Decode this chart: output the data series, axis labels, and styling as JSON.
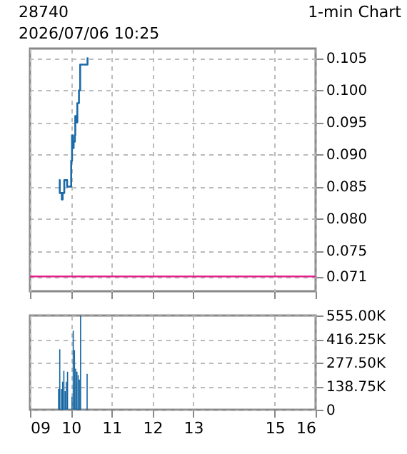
{
  "chart_data": [
    {
      "type": "step",
      "title": "28740",
      "subtitle": "2026/07/06 10:25",
      "annotations": [
        "1-min Chart"
      ],
      "x": [
        9.71,
        9.73,
        9.78,
        9.8,
        9.84,
        9.91,
        10.0,
        10.01,
        10.03,
        10.05,
        10.07,
        10.1,
        10.11,
        10.14,
        10.16,
        10.2,
        10.23,
        10.4,
        10.41,
        10.43
      ],
      "series": [
        {
          "color": "#1a6aa8",
          "values": [
            0.086,
            0.084,
            0.083,
            0.084,
            0.086,
            0.085,
            0.085,
            0.089,
            0.093,
            0.091,
            0.092,
            0.093,
            0.096,
            0.095,
            0.098,
            0.1,
            0.104,
            0.104,
            0.105,
            0.105
          ]
        }
      ],
      "xlim": [
        9,
        16
      ],
      "xticks": [
        9,
        10,
        11,
        12,
        13,
        15,
        16
      ],
      "ylim": [
        0.0687,
        0.1065
      ],
      "yticks": [
        0.071,
        0.075,
        {
          "value": 0.08,
          "label": "0.080"
        },
        0.085,
        {
          "value": 0.09,
          "label": "0.090"
        },
        0.095,
        {
          "value": 0.1,
          "label": "0.100"
        },
        0.105
      ],
      "ref_lines": [
        {
          "axis": "y",
          "value": 0.071,
          "color": "#e0208a"
        }
      ],
      "grid": true,
      "tick_labels": "y"
    },
    {
      "type": "bar",
      "x": [
        9.7,
        9.73,
        9.77,
        9.8,
        9.83,
        9.86,
        9.89,
        9.92,
        10.03,
        10.06,
        10.09,
        10.12,
        10.15,
        10.18,
        10.21,
        10.24,
        10.4
      ],
      "series": [
        {
          "color": "#1565a0",
          "values": [
            122000,
            356000,
            122000,
            165000,
            229000,
            109000,
            165000,
            224000,
            76000,
            466000,
            351000,
            242000,
            224000,
            204000,
            178000,
            555000,
            211000
          ]
        }
      ],
      "xlim": [
        9,
        16
      ],
      "xticks": [
        {
          "value": 9,
          "label": "09"
        },
        10,
        11,
        12,
        13,
        15,
        16
      ],
      "ylim": [
        0,
        555000
      ],
      "yticks": [
        0,
        {
          "value": 138750,
          "label": "138.75K"
        },
        {
          "value": 277500,
          "label": "277.50K"
        },
        {
          "value": 416250,
          "label": "416.25K"
        },
        {
          "value": 555000,
          "label": "555.00K"
        }
      ],
      "grid": true
    }
  ]
}
